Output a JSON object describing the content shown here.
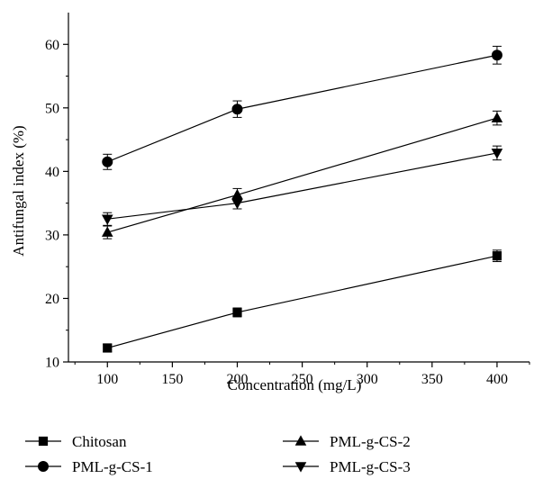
{
  "chart_data": {
    "type": "line",
    "xlabel": "Concentration (mg/L)",
    "ylabel": "Antifungal index (%)",
    "xlim": [
      70,
      425
    ],
    "ylim": [
      10,
      65
    ],
    "x_ticks": [
      100,
      150,
      200,
      250,
      300,
      350,
      400
    ],
    "y_ticks": [
      10,
      20,
      30,
      40,
      50,
      60
    ],
    "x": [
      100,
      200,
      400
    ],
    "legend_position": "bottom",
    "grid": false,
    "series": [
      {
        "name": "Chitosan",
        "marker": "square",
        "values": [
          12.2,
          17.8,
          26.7
        ],
        "errors": [
          0.6,
          0.7,
          0.9
        ]
      },
      {
        "name": "PML-g-CS-1",
        "marker": "circle",
        "values": [
          41.5,
          49.8,
          58.3
        ],
        "errors": [
          1.2,
          1.3,
          1.4
        ]
      },
      {
        "name": "PML-g-CS-2",
        "marker": "triangle-up",
        "values": [
          30.4,
          36.3,
          48.4
        ],
        "errors": [
          1.0,
          1.0,
          1.1
        ]
      },
      {
        "name": "PML-g-CS-3",
        "marker": "triangle-down",
        "values": [
          32.5,
          35.0,
          42.9
        ],
        "errors": [
          1.0,
          0.9,
          1.1
        ]
      }
    ]
  }
}
